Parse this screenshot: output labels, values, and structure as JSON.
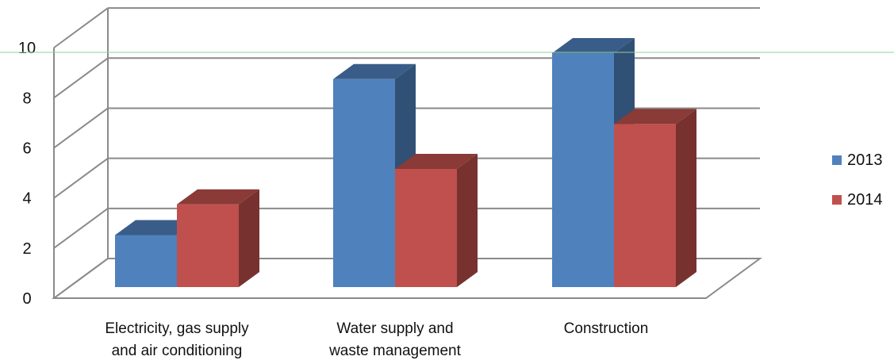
{
  "chart_data": {
    "type": "bar",
    "categories": [
      [
        "Electricity, gas supply",
        "and air conditioning"
      ],
      [
        "Water supply and",
        "waste management"
      ],
      [
        "Construction"
      ]
    ],
    "series": [
      {
        "name": "2013",
        "values": [
          2.2,
          8.8,
          9.9
        ],
        "color": "#4f81bd"
      },
      {
        "name": "2014",
        "values": [
          3.5,
          5.0,
          6.9
        ],
        "color": "#c0504d"
      }
    ],
    "ylim": [
      0,
      10
    ],
    "yticks": [
      0,
      2,
      4,
      6,
      8,
      10
    ],
    "grid": true,
    "legend": "right",
    "title": "",
    "xlabel": "",
    "ylabel": ""
  }
}
